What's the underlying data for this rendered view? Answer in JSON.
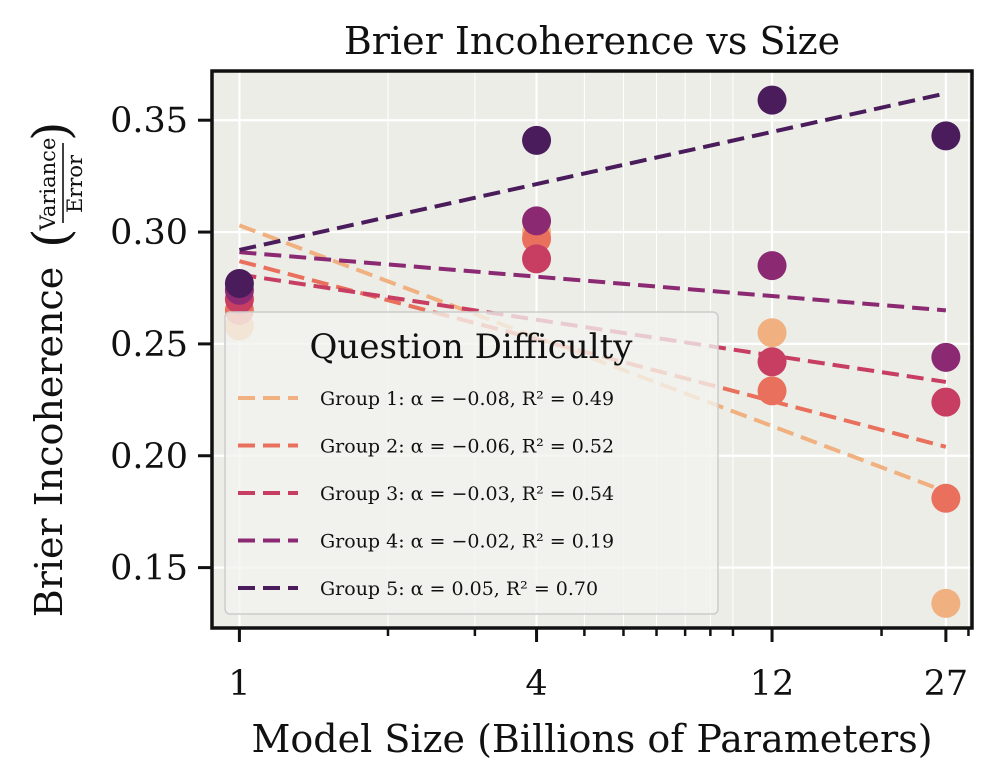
{
  "chart_data": {
    "type": "scatter",
    "title": "Brier Incoherence vs Size",
    "xlabel": "Model Size (Billions of Parameters)",
    "ylabel": "Brier Incoherence",
    "ylabel_fraction": {
      "numerator": "Variance",
      "denominator": "Error"
    },
    "x_scale": "log",
    "xlim": [
      0.88,
      30.5
    ],
    "ylim": [
      0.123,
      0.372
    ],
    "x_ticks": [
      1,
      4,
      12,
      27
    ],
    "x_tick_labels": [
      "1",
      "4",
      "12",
      "27"
    ],
    "y_ticks": [
      0.15,
      0.2,
      0.25,
      0.3,
      0.35
    ],
    "y_tick_labels": [
      "0.15",
      "0.20",
      "0.25",
      "0.30",
      "0.35"
    ],
    "grid": true,
    "legend": {
      "title": "Question Difficulty",
      "position": "lower-left"
    },
    "series": [
      {
        "name": "Group 1",
        "label": "Group 1: α = −0.08, R² = 0.49",
        "color": "#F0B07F",
        "x": [
          1,
          4,
          12,
          27
        ],
        "y": [
          0.258,
          0.3,
          0.255,
          0.134
        ],
        "fit": {
          "x": [
            1,
            27
          ],
          "y": [
            0.303,
            0.184
          ]
        }
      },
      {
        "name": "Group 2",
        "label": "Group 2: α = −0.06, R² = 0.52",
        "color": "#E8705C",
        "x": [
          1,
          4,
          12,
          27
        ],
        "y": [
          0.265,
          0.297,
          0.229,
          0.181
        ],
        "fit": {
          "x": [
            1,
            27
          ],
          "y": [
            0.287,
            0.204
          ]
        }
      },
      {
        "name": "Group 3",
        "label": "Group 3: α = −0.03, R² = 0.54",
        "color": "#C73E62",
        "x": [
          1,
          4,
          12,
          27
        ],
        "y": [
          0.27,
          0.288,
          0.242,
          0.224
        ],
        "fit": {
          "x": [
            1,
            27
          ],
          "y": [
            0.281,
            0.233
          ]
        }
      },
      {
        "name": "Group 4",
        "label": "Group 4: α = −0.02, R² = 0.19",
        "color": "#8B2A72",
        "x": [
          1,
          4,
          12,
          27
        ],
        "y": [
          0.274,
          0.305,
          0.285,
          0.244
        ],
        "fit": {
          "x": [
            1,
            27
          ],
          "y": [
            0.291,
            0.265
          ]
        }
      },
      {
        "name": "Group 5",
        "label": "Group 5: α = 0.05, R² = 0.70",
        "color": "#4A1C5C",
        "x": [
          1,
          4,
          12,
          27
        ],
        "y": [
          0.277,
          0.341,
          0.359,
          0.343
        ],
        "fit": {
          "x": [
            1,
            27
          ],
          "y": [
            0.292,
            0.362
          ]
        }
      }
    ]
  }
}
